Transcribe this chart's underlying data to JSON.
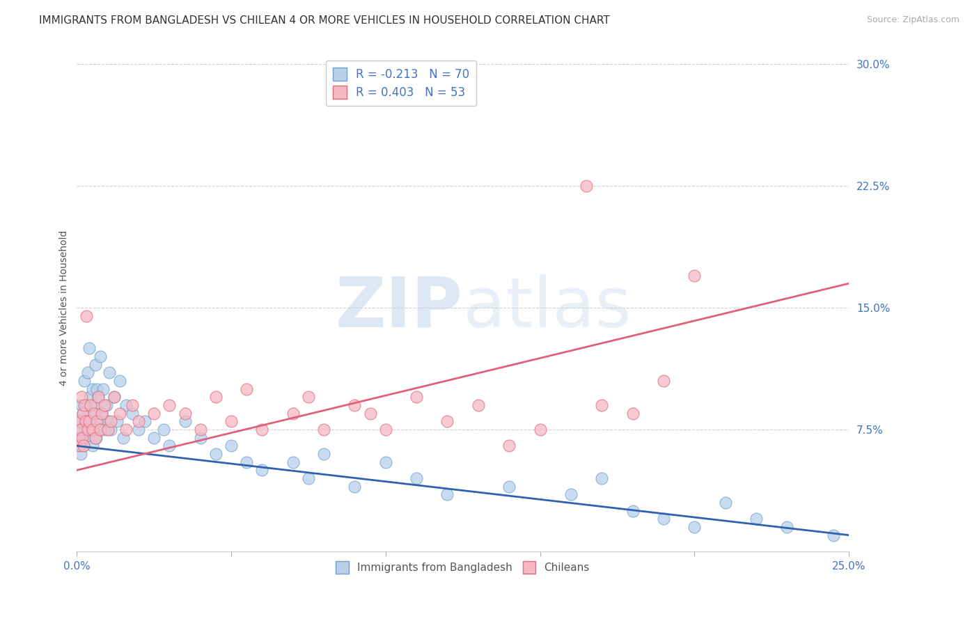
{
  "title": "IMMIGRANTS FROM BANGLADESH VS CHILEAN 4 OR MORE VEHICLES IN HOUSEHOLD CORRELATION CHART",
  "source": "Source: ZipAtlas.com",
  "ylabel": "4 or more Vehicles in Household",
  "xlim": [
    0.0,
    25.0
  ],
  "ylim": [
    0.0,
    30.0
  ],
  "yticks": [
    7.5,
    15.0,
    22.5,
    30.0
  ],
  "xticks": [
    0.0,
    5.0,
    10.0,
    15.0,
    20.0,
    25.0
  ],
  "xtick_labels_show": [
    true,
    false,
    false,
    false,
    false,
    true
  ],
  "title_fontsize": 11,
  "axis_label_fontsize": 10,
  "tick_fontsize": 11,
  "source_fontsize": 9,
  "watermark_text": "ZIPatlas",
  "series": [
    {
      "name": "Immigrants from Bangladesh",
      "R": -0.213,
      "N": 70,
      "dot_color": "#b8d0ea",
      "dot_edge_color": "#6fa0cc",
      "line_color": "#3060b0",
      "x": [
        0.05,
        0.08,
        0.1,
        0.12,
        0.15,
        0.18,
        0.2,
        0.22,
        0.25,
        0.28,
        0.3,
        0.32,
        0.35,
        0.38,
        0.4,
        0.42,
        0.45,
        0.48,
        0.5,
        0.52,
        0.55,
        0.58,
        0.6,
        0.62,
        0.65,
        0.68,
        0.7,
        0.72,
        0.75,
        0.8,
        0.85,
        0.9,
        0.95,
        1.0,
        1.05,
        1.1,
        1.2,
        1.3,
        1.4,
        1.5,
        1.6,
        1.8,
        2.0,
        2.2,
        2.5,
        2.8,
        3.0,
        3.5,
        4.0,
        4.5,
        5.0,
        5.5,
        6.0,
        7.0,
        7.5,
        8.0,
        9.0,
        10.0,
        11.0,
        12.0,
        14.0,
        16.0,
        17.0,
        18.0,
        19.0,
        20.0,
        21.0,
        22.0,
        23.0,
        24.5
      ],
      "y": [
        6.5,
        7.5,
        8.0,
        6.0,
        9.0,
        7.0,
        8.5,
        6.5,
        10.5,
        7.5,
        9.0,
        8.0,
        11.0,
        7.0,
        12.5,
        9.5,
        8.0,
        7.5,
        10.0,
        6.5,
        9.0,
        8.5,
        11.5,
        7.0,
        10.0,
        8.0,
        9.5,
        7.5,
        12.0,
        8.5,
        10.0,
        7.5,
        9.0,
        8.0,
        11.0,
        7.5,
        9.5,
        8.0,
        10.5,
        7.0,
        9.0,
        8.5,
        7.5,
        8.0,
        7.0,
        7.5,
        6.5,
        8.0,
        7.0,
        6.0,
        6.5,
        5.5,
        5.0,
        5.5,
        4.5,
        6.0,
        4.0,
        5.5,
        4.5,
        3.5,
        4.0,
        3.5,
        4.5,
        2.5,
        2.0,
        1.5,
        3.0,
        2.0,
        1.5,
        1.0
      ],
      "line_x0": 0.0,
      "line_y0": 6.5,
      "line_x1": 25.0,
      "line_y1": 1.0
    },
    {
      "name": "Chileans",
      "R": 0.403,
      "N": 53,
      "dot_color": "#f5b8c4",
      "dot_edge_color": "#e06878",
      "line_color": "#e0607a",
      "x": [
        0.05,
        0.08,
        0.1,
        0.12,
        0.15,
        0.18,
        0.2,
        0.22,
        0.25,
        0.28,
        0.3,
        0.35,
        0.4,
        0.45,
        0.5,
        0.55,
        0.6,
        0.65,
        0.7,
        0.75,
        0.8,
        0.9,
        1.0,
        1.1,
        1.2,
        1.4,
        1.6,
        1.8,
        2.0,
        2.5,
        3.0,
        3.5,
        4.0,
        4.5,
        5.0,
        5.5,
        6.0,
        7.0,
        7.5,
        8.0,
        9.0,
        9.5,
        10.0,
        11.0,
        12.0,
        13.0,
        14.0,
        15.0,
        16.5,
        17.0,
        18.0,
        19.0,
        20.0
      ],
      "y": [
        7.0,
        6.5,
        8.0,
        7.5,
        9.5,
        7.0,
        8.5,
        6.5,
        9.0,
        8.0,
        14.5,
        7.5,
        8.0,
        9.0,
        7.5,
        8.5,
        7.0,
        8.0,
        9.5,
        7.5,
        8.5,
        9.0,
        7.5,
        8.0,
        9.5,
        8.5,
        7.5,
        9.0,
        8.0,
        8.5,
        9.0,
        8.5,
        7.5,
        9.5,
        8.0,
        10.0,
        7.5,
        8.5,
        9.5,
        7.5,
        9.0,
        8.5,
        7.5,
        9.5,
        8.0,
        9.0,
        6.5,
        7.5,
        22.5,
        9.0,
        8.5,
        10.5,
        17.0
      ],
      "line_x0": 0.0,
      "line_y0": 5.0,
      "line_x1": 25.0,
      "line_y1": 16.5
    }
  ]
}
